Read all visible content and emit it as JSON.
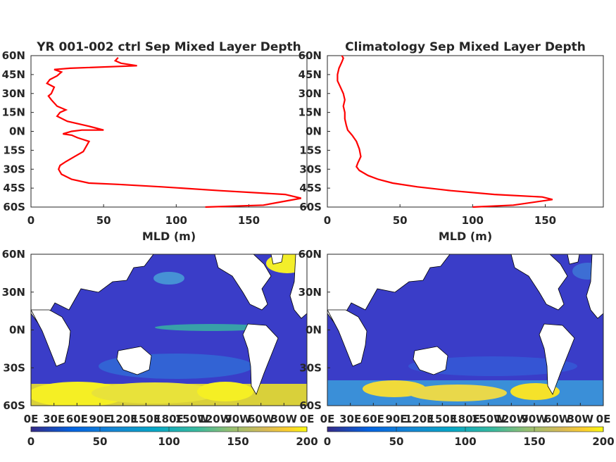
{
  "chart_data": [
    {
      "type": "line",
      "title": "YR 001-002 ctrl Sep Mixed Layer Depth",
      "xlabel": "MLD (m)",
      "ylabel": "",
      "xlim": [
        0,
        190
      ],
      "ylim": [
        -60,
        60
      ],
      "xticks": [
        0,
        50,
        100,
        150
      ],
      "yticks": [
        "60S",
        "45S",
        "30S",
        "15S",
        "0N",
        "15N",
        "30N",
        "45N",
        "60N"
      ],
      "color": "#ff0000",
      "series": [
        {
          "x": [
            120,
            160,
            186,
            175,
            130,
            90,
            60,
            40,
            28,
            21,
            19,
            20,
            24,
            30,
            36,
            40,
            32,
            28,
            22,
            28,
            35,
            50,
            40,
            25,
            18,
            20,
            24,
            18,
            14,
            12,
            14,
            16,
            11,
            13,
            18,
            21,
            16,
            27,
            73,
            62,
            58,
            60
          ],
          "lat": [
            -60,
            -58.5,
            -53,
            -50,
            -47,
            -44,
            -42,
            -41,
            -38,
            -34,
            -30,
            -27,
            -24,
            -20,
            -16,
            -8,
            -5,
            -3,
            -2,
            0,
            1,
            1,
            4,
            8,
            12,
            15,
            17,
            20,
            25,
            28,
            30,
            35,
            38,
            41,
            44,
            47,
            49,
            50,
            52,
            54,
            56,
            58.5
          ]
        }
      ]
    },
    {
      "type": "line",
      "title": "Climatology Sep Mixed Layer Depth",
      "xlabel": "MLD (m)",
      "ylabel": "",
      "xlim": [
        0,
        190
      ],
      "ylim": [
        -60,
        60
      ],
      "xticks": [
        0,
        50,
        100,
        150
      ],
      "yticks": [
        "60S",
        "45S",
        "30S",
        "15S",
        "0N",
        "15N",
        "30N",
        "45N",
        "60N"
      ],
      "color": "#ff0000",
      "series": [
        {
          "x": [
            100,
            128,
            155,
            148,
            115,
            85,
            62,
            45,
            35,
            28,
            22,
            20,
            21,
            23,
            22,
            20,
            17,
            14,
            13,
            12,
            12,
            11,
            12,
            11,
            9,
            7,
            7,
            8,
            10,
            11,
            10
          ],
          "lat": [
            -60,
            -58.5,
            -54,
            -52,
            -50,
            -47,
            -44,
            -41,
            -38,
            -35,
            -31,
            -28,
            -25,
            -20,
            -14,
            -8,
            -3,
            1,
            5,
            10,
            15,
            20,
            25,
            30,
            35,
            40,
            45,
            50,
            55,
            58,
            60
          ]
        }
      ]
    },
    {
      "type": "heatmap",
      "title": "",
      "yticks": [
        "60S",
        "30S",
        "0N",
        "30N",
        "60N"
      ],
      "xticks": [
        "0E",
        "30E",
        "60E",
        "90E",
        "120E",
        "150E",
        "180E",
        "150W",
        "120W",
        "90W",
        "60W",
        "30W",
        "0E"
      ],
      "colorbar": {
        "ticks": [
          0,
          50,
          100,
          150,
          200
        ],
        "range": [
          0,
          200
        ],
        "colormap": "parula"
      }
    },
    {
      "type": "heatmap",
      "title": "",
      "yticks": [
        "60S",
        "30S",
        "0N",
        "30N",
        "60N"
      ],
      "xticks": [
        "0E",
        "30E",
        "60E",
        "90E",
        "120E",
        "150E",
        "180E",
        "150W",
        "120W",
        "90W",
        "60W",
        "30W",
        "0E"
      ],
      "colorbar": {
        "ticks": [
          0,
          50,
          100,
          150,
          200
        ],
        "range": [
          0,
          200
        ],
        "colormap": "parula"
      }
    }
  ]
}
